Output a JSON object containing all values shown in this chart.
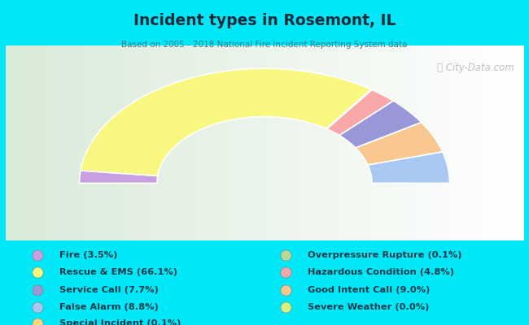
{
  "title": "Incident types in Rosemont, IL",
  "subtitle": "Based on 2005 - 2018 National Fire Incident Reporting System data",
  "watermark": "ⓘ City-Data.com",
  "bg_color": "#00e8f8",
  "chart_bg_top_left": "#c8e8c0",
  "chart_bg_top_right": "#e8f4f0",
  "chart_bg_bottom": "#f0f8f0",
  "title_color": "#1a2a3a",
  "subtitle_color": "#3a7a8a",
  "legend_text_color": "#0a3a4a",
  "segments": [
    {
      "label": "Fire",
      "value": 3.5,
      "color": "#c8a0e0"
    },
    {
      "label": "Rescue & EMS",
      "value": 66.1,
      "color": "#f8f880"
    },
    {
      "label": "Special Incident",
      "value": 0.1,
      "color": "#f8d878"
    },
    {
      "label": "Overpressure Rupture",
      "value": 0.1,
      "color": "#b8d898"
    },
    {
      "label": "Hazardous Condition",
      "value": 4.8,
      "color": "#f8a8a8"
    },
    {
      "label": "Service Call",
      "value": 7.7,
      "color": "#9898d8"
    },
    {
      "label": "Good Intent Call",
      "value": 9.0,
      "color": "#f8c890"
    },
    {
      "label": "False Alarm",
      "value": 8.8,
      "color": "#a8c8f0"
    },
    {
      "label": "Severe Weather",
      "value": 0.0,
      "color": "#d8f080"
    }
  ],
  "legend_left": [
    {
      "label": "Fire (3.5%)",
      "color": "#c8a0e0"
    },
    {
      "label": "Rescue & EMS (66.1%)",
      "color": "#f8f880"
    },
    {
      "label": "Service Call (7.7%)",
      "color": "#9898d8"
    },
    {
      "label": "False Alarm (8.8%)",
      "color": "#a8c8f0"
    },
    {
      "label": "Special Incident (0.1%)",
      "color": "#f8d878"
    }
  ],
  "legend_right": [
    {
      "label": "Overpressure Rupture (0.1%)",
      "color": "#b8d898"
    },
    {
      "label": "Hazardous Condition (4.8%)",
      "color": "#f8a8a8"
    },
    {
      "label": "Good Intent Call (9.0%)",
      "color": "#f8c890"
    },
    {
      "label": "Severe Weather (0.0%)",
      "color": "#d8f080"
    }
  ]
}
